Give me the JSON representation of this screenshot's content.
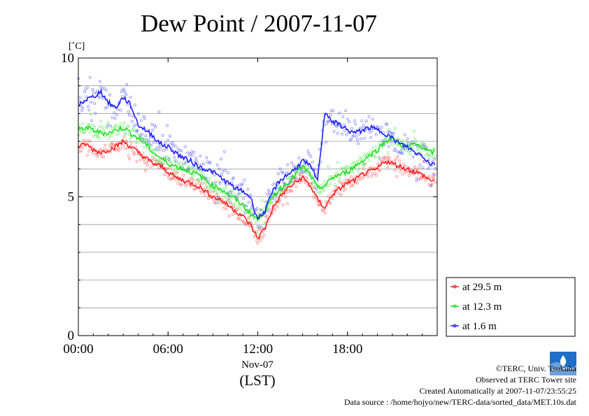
{
  "chart_data": {
    "type": "line",
    "title": "Dew Point / 2007-11-07",
    "ylabel": "[˚C]",
    "xlabel_lines": [
      "Nov-07",
      "(LST)"
    ],
    "ylim": [
      0,
      10
    ],
    "xlim": [
      0,
      24
    ],
    "x_ticks": [
      {
        "value": 0,
        "label": "00:00"
      },
      {
        "value": 6,
        "label": "06:00"
      },
      {
        "value": 12,
        "label": "12:00"
      },
      {
        "value": 18,
        "label": "18:00"
      }
    ],
    "y_ticks": [
      {
        "value": 0,
        "label": "0"
      },
      {
        "value": 5,
        "label": "5"
      },
      {
        "value": 10,
        "label": "10"
      }
    ],
    "y_grid": [
      1,
      2,
      3,
      4,
      5,
      6,
      7,
      8,
      9
    ],
    "legend_position": "bottom-right",
    "series": [
      {
        "name": "at 29.5 m",
        "color": "#ff2020",
        "x": [
          0,
          0.5,
          1,
          1.5,
          2,
          2.5,
          3,
          3.5,
          4,
          4.5,
          5,
          5.5,
          6,
          6.5,
          7,
          7.5,
          8,
          8.5,
          9,
          9.5,
          10,
          10.5,
          11,
          11.5,
          12,
          12.5,
          13,
          13.5,
          14,
          14.5,
          15,
          15.5,
          16,
          16.5,
          17,
          17.5,
          18,
          18.5,
          19,
          19.5,
          20,
          20.5,
          21,
          21.5,
          22,
          22.5,
          23,
          23.5
        ],
        "values": [
          6.8,
          6.9,
          6.7,
          6.6,
          6.7,
          6.8,
          7.0,
          6.8,
          6.6,
          6.4,
          6.2,
          6.1,
          5.9,
          5.7,
          5.6,
          5.5,
          5.4,
          5.2,
          5.0,
          4.9,
          4.7,
          4.5,
          4.3,
          4.0,
          3.5,
          3.9,
          4.6,
          5.0,
          5.3,
          5.5,
          5.7,
          5.4,
          4.9,
          4.6,
          5.1,
          5.3,
          5.5,
          5.6,
          5.8,
          5.9,
          6.0,
          6.3,
          6.2,
          6.1,
          6.0,
          5.9,
          5.8,
          5.6
        ]
      },
      {
        "name": "at 12.3 m",
        "color": "#20e020",
        "x": [
          0,
          0.5,
          1,
          1.5,
          2,
          2.5,
          3,
          3.5,
          4,
          4.5,
          5,
          5.5,
          6,
          6.5,
          7,
          7.5,
          8,
          8.5,
          9,
          9.5,
          10,
          10.5,
          11,
          11.5,
          12,
          12.5,
          13,
          13.5,
          14,
          14.5,
          15,
          15.5,
          16,
          16.5,
          17,
          17.5,
          18,
          18.5,
          19,
          19.5,
          20,
          20.5,
          21,
          21.5,
          22,
          22.5,
          23,
          23.5
        ],
        "values": [
          7.4,
          7.5,
          7.4,
          7.3,
          7.3,
          7.4,
          7.5,
          7.3,
          7.1,
          6.9,
          6.6,
          6.4,
          6.2,
          6.1,
          6.0,
          5.9,
          5.8,
          5.6,
          5.4,
          5.3,
          5.1,
          4.9,
          4.7,
          4.4,
          4.2,
          4.5,
          5.0,
          5.3,
          5.5,
          5.8,
          6.1,
          5.8,
          5.3,
          5.4,
          5.7,
          5.8,
          5.9,
          6.1,
          6.3,
          6.5,
          6.7,
          7.0,
          7.1,
          6.9,
          6.8,
          6.9,
          6.8,
          6.6
        ]
      },
      {
        "name": "at 1.6 m",
        "color": "#2020ff",
        "x": [
          0,
          0.5,
          1,
          1.5,
          2,
          2.5,
          3,
          3.5,
          4,
          4.5,
          5,
          5.5,
          6,
          6.5,
          7,
          7.5,
          8,
          8.5,
          9,
          9.5,
          10,
          10.5,
          11,
          11.5,
          12,
          12.5,
          13,
          13.5,
          14,
          14.5,
          15,
          15.5,
          16,
          16.5,
          17,
          17.5,
          18,
          18.5,
          19,
          19.5,
          20,
          20.5,
          21,
          21.5,
          22,
          22.5,
          23,
          23.5
        ],
        "values": [
          8.3,
          8.5,
          8.6,
          8.8,
          8.4,
          8.2,
          8.6,
          8.3,
          7.6,
          7.4,
          7.2,
          6.9,
          6.8,
          6.6,
          6.4,
          6.3,
          6.1,
          6.0,
          5.9,
          5.7,
          5.5,
          5.3,
          5.2,
          5.0,
          4.2,
          4.5,
          5.2,
          5.6,
          5.8,
          6.0,
          6.3,
          6.1,
          5.6,
          8.1,
          7.7,
          7.6,
          7.4,
          7.3,
          7.4,
          7.5,
          7.4,
          7.3,
          7.1,
          6.9,
          6.8,
          6.6,
          6.5,
          6.2
        ]
      }
    ]
  },
  "credits": {
    "line1": "©TERC, Univ. Tsukuba",
    "line2": "Observed at TERC Tower site",
    "line3": "Created Automatically at 2007-11-07/23:55:25",
    "line4": "Data source : /home/hojyo/new/TERC-data/sorted_data/MET.10s.dat"
  }
}
